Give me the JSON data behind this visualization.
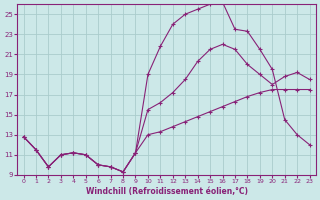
{
  "background_color": "#cce8e8",
  "grid_color": "#aacccc",
  "line_color": "#882277",
  "xlabel": "Windchill (Refroidissement éolien,°C)",
  "xlim": [
    -0.5,
    23.5
  ],
  "ylim": [
    9,
    26
  ],
  "yticks": [
    9,
    11,
    13,
    15,
    17,
    19,
    21,
    23,
    25
  ],
  "xticks": [
    0,
    1,
    2,
    3,
    4,
    5,
    6,
    7,
    8,
    9,
    10,
    11,
    12,
    13,
    14,
    15,
    16,
    17,
    18,
    19,
    20,
    21,
    22,
    23
  ],
  "curve_low_x": [
    0,
    1,
    2,
    3,
    4,
    5,
    6,
    7,
    8,
    9,
    10,
    11,
    12,
    13,
    14,
    15,
    16,
    17,
    18,
    19,
    20,
    21,
    22,
    23
  ],
  "curve_low_y": [
    12.8,
    11.5,
    9.8,
    11.0,
    11.2,
    11.0,
    10.0,
    9.8,
    9.3,
    11.2,
    13.0,
    13.3,
    13.8,
    14.3,
    14.8,
    15.3,
    15.8,
    16.3,
    16.8,
    17.2,
    17.5,
    17.5,
    17.5,
    17.5
  ],
  "curve_mid_x": [
    0,
    1,
    2,
    3,
    4,
    5,
    6,
    7,
    8,
    9,
    10,
    11,
    12,
    13,
    14,
    15,
    16,
    17,
    18,
    19,
    20,
    21,
    22,
    23
  ],
  "curve_mid_y": [
    12.8,
    11.5,
    9.8,
    11.0,
    11.2,
    11.0,
    10.0,
    9.8,
    9.3,
    11.2,
    15.5,
    16.2,
    17.2,
    18.5,
    20.3,
    21.5,
    22.0,
    21.5,
    20.0,
    19.0,
    18.0,
    18.8,
    19.2,
    18.5
  ],
  "curve_hi_x": [
    0,
    1,
    2,
    3,
    4,
    5,
    6,
    7,
    8,
    9,
    10,
    11,
    12,
    13,
    14,
    15,
    16,
    17,
    18,
    19,
    20,
    21,
    22,
    23
  ],
  "curve_hi_y": [
    12.8,
    11.5,
    9.8,
    11.0,
    11.2,
    11.0,
    10.0,
    9.8,
    9.3,
    11.2,
    19.0,
    21.8,
    24.0,
    25.0,
    25.5,
    26.0,
    26.2,
    23.5,
    23.3,
    21.5,
    19.5,
    14.5,
    13.0,
    12.0
  ]
}
